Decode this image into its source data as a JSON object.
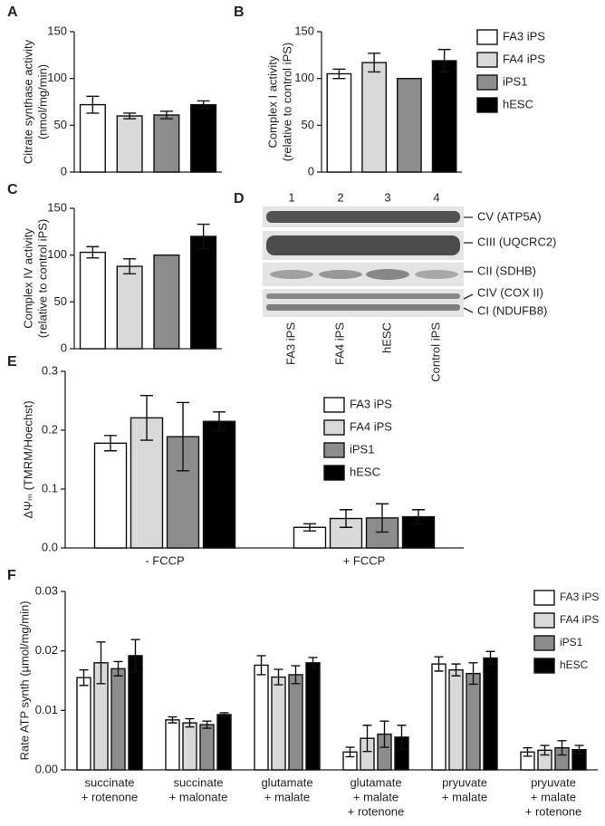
{
  "chart_data": [
    {
      "type": "bar",
      "panel": "A",
      "y_label": [
        "Citrate synthase activity",
        "(nmol/mg/min)"
      ],
      "values": [
        72,
        60,
        61,
        72
      ],
      "errors": [
        9,
        3,
        4,
        4
      ],
      "colors": [
        "#ffffff",
        "#d9d9d9",
        "#8c8c8c",
        "#000000"
      ],
      "ylim": [
        0,
        150
      ],
      "yticks": [
        0,
        50,
        100,
        150
      ]
    },
    {
      "type": "bar",
      "panel": "B",
      "y_label": [
        "Complex I activity",
        "(relative to control iPS)"
      ],
      "values": [
        105,
        117,
        100,
        119
      ],
      "errors": [
        5,
        10,
        null,
        12
      ],
      "colors": [
        "#ffffff",
        "#d9d9d9",
        "#8c8c8c",
        "#000000"
      ],
      "legend": [
        "FA3 iPS",
        "FA4 iPS",
        "iPS1",
        "hESC"
      ],
      "ylim": [
        0,
        150
      ],
      "yticks": [
        0,
        50,
        100,
        150
      ]
    },
    {
      "type": "bar",
      "panel": "C",
      "y_label": [
        "Complex IV activity",
        "(relative to control iPS)"
      ],
      "values": [
        103,
        88,
        100,
        120
      ],
      "errors": [
        6,
        8,
        null,
        13
      ],
      "colors": [
        "#ffffff",
        "#d9d9d9",
        "#8c8c8c",
        "#000000"
      ],
      "ylim": [
        0,
        150
      ],
      "yticks": [
        0,
        50,
        100,
        150
      ]
    },
    {
      "type": "bar",
      "panel": "E",
      "y_label": [
        "ΔΨₘ (TMRM/Hoechst)"
      ],
      "categories": [
        "- FCCP",
        "+ FCCP"
      ],
      "series": [
        {
          "name": "FA3 iPS",
          "color": "#ffffff",
          "values": [
            0.178,
            0.035
          ],
          "errors": [
            0.013,
            0.006
          ]
        },
        {
          "name": "FA4 iPS",
          "color": "#d9d9d9",
          "values": [
            0.221,
            0.05
          ],
          "errors": [
            0.038,
            0.015
          ]
        },
        {
          "name": "iPS1",
          "color": "#8c8c8c",
          "values": [
            0.189,
            0.051
          ],
          "errors": [
            0.058,
            0.024
          ]
        },
        {
          "name": "hESC",
          "color": "#000000",
          "values": [
            0.215,
            0.053
          ],
          "errors": [
            0.016,
            0.012
          ]
        }
      ],
      "ylim": [
        0,
        0.3
      ],
      "yticks": [
        {
          "value": 0,
          "label": "0.0"
        },
        0.1,
        0.2,
        0.3
      ]
    },
    {
      "type": "bar",
      "panel": "F",
      "y_label": [
        "Rate ATP synth (µmol/mg/min)"
      ],
      "categories": [
        [
          "succinate",
          "+ rotenone"
        ],
        [
          "succinate",
          "+ malonate"
        ],
        [
          "glutamate",
          "+ malate"
        ],
        [
          "glutamate",
          "+ malate",
          "+ rotenone"
        ],
        [
          "pryuvate",
          "+ malate"
        ],
        [
          "pryuvate",
          "+ malate",
          "+ rotenone"
        ]
      ],
      "series": [
        {
          "name": "FA3 iPS",
          "color": "#ffffff",
          "values": [
            0.0155,
            0.0084,
            0.0176,
            0.003,
            0.0178,
            0.003
          ],
          "errors": [
            0.0013,
            0.0005,
            0.0016,
            0.0008,
            0.0012,
            0.0007
          ]
        },
        {
          "name": "FA4 iPS",
          "color": "#d9d9d9",
          "values": [
            0.018,
            0.0079,
            0.0156,
            0.0053,
            0.0168,
            0.0033
          ],
          "errors": [
            0.0035,
            0.0007,
            0.0013,
            0.0022,
            0.001,
            0.0008
          ]
        },
        {
          "name": "iPS1",
          "color": "#8c8c8c",
          "values": [
            0.017,
            0.0076,
            0.016,
            0.006,
            0.0162,
            0.0037
          ],
          "errors": [
            0.0012,
            0.0006,
            0.0015,
            0.0022,
            0.0018,
            0.0012
          ]
        },
        {
          "name": "hESC",
          "color": "#000000",
          "values": [
            0.0192,
            0.0093,
            0.018,
            0.0055,
            0.0188,
            0.0034
          ],
          "errors": [
            0.0027,
            0.0003,
            0.0009,
            0.002,
            0.0011,
            0.0007
          ]
        }
      ],
      "ylim": [
        0,
        0.03
      ],
      "yticks": [
        {
          "value": 0,
          "label": "0.00"
        },
        0.01,
        0.02,
        0.03
      ]
    }
  ],
  "blot": {
    "panel": "D",
    "lanes": [
      "1",
      "2",
      "3",
      "4"
    ],
    "bands": [
      "CV (ATP5A)",
      "CIII (UQCRC2)",
      "CII (SDHB)",
      "CIV (COX II)",
      "CI (NDUFB8)"
    ],
    "samples": [
      "FA3 iPS",
      "FA4 iPS",
      "hESC",
      "Control iPS"
    ]
  }
}
